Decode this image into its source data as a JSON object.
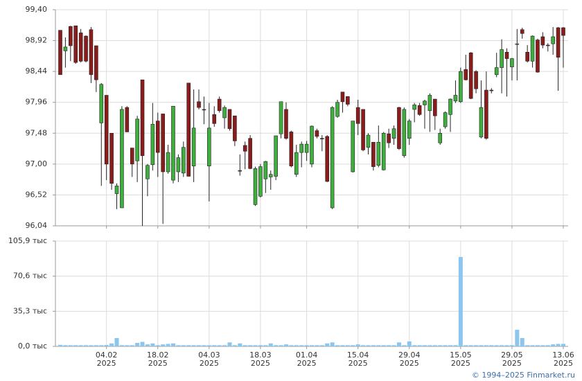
{
  "chart_data": [
    {
      "type": "candlestick",
      "categories": [
        null,
        null,
        null,
        null,
        null,
        null,
        null,
        null,
        null,
        "04.02\n2025",
        null,
        null,
        null,
        null,
        null,
        null,
        null,
        null,
        null,
        "18.02\n2025",
        null,
        null,
        null,
        null,
        null,
        null,
        null,
        null,
        null,
        "04.03\n2025",
        null,
        null,
        null,
        null,
        null,
        null,
        null,
        null,
        null,
        "18.03\n2025",
        null,
        null,
        null,
        null,
        null,
        null,
        null,
        null,
        "01.04\n2025",
        null,
        null,
        null,
        null,
        null,
        null,
        null,
        null,
        null,
        "15.04\n2025",
        null,
        null,
        null,
        null,
        null,
        null,
        null,
        null,
        null,
        "29.04\n2025",
        null,
        null,
        null,
        null,
        null,
        null,
        null,
        null,
        null,
        "15.05\n2025",
        null,
        null,
        null,
        null,
        null,
        null,
        null,
        null,
        null,
        "29.05\n2025",
        null,
        null,
        null,
        null,
        null,
        null,
        null,
        null,
        null,
        "13.06\n2025"
      ],
      "open": [
        99.08,
        98.76,
        99.14,
        99.15,
        99.04,
        98.99,
        99.09,
        98.84,
        97.64,
        98.07,
        97.48,
        96.54,
        96.32,
        97.88,
        97.25,
        97.05,
        98.31,
        96.77,
        96.99,
        97.67,
        97.78,
        96.88,
        96.75,
        96.88,
        96.86,
        98.26,
        96.97,
        97.97,
        97.85,
        96.97,
        97.77,
        98.01,
        97.72,
        97.85,
        97.75,
        96.9,
        97.29,
        97.4,
        96.37,
        96.5,
        96.77,
        96.8,
        96.81,
        97.47,
        97.85,
        97.5,
        96.84,
        97.18,
        97.18,
        97.0,
        97.52,
        97.4,
        97.43,
        96.32,
        97.74,
        98.12,
        98.05,
        96.88,
        97.88,
        97.85,
        97.26,
        97.34,
        96.98,
        96.91,
        97.47,
        97.4,
        97.88,
        97.13,
        97.4,
        97.85,
        97.91,
        97.92,
        97.83,
        98.01,
        97.33,
        97.58,
        97.77,
        97.98,
        97.97,
        98.47,
        98.73,
        98.44,
        97.42,
        98.15,
        98.15,
        98.39,
        98.5,
        98.74,
        98.51,
        98.86,
        99.09,
        98.74,
        98.6,
        98.93,
        98.98,
        98.85,
        98.87,
        99.12,
        99.12
      ],
      "high": [
        99.08,
        98.97,
        99.15,
        99.15,
        99.1,
        99.0,
        99.13,
        98.84,
        98.26,
        98.07,
        97.48,
        96.7,
        97.9,
        97.9,
        97.25,
        97.75,
        98.31,
        97.0,
        97.95,
        97.8,
        97.78,
        97.3,
        97.9,
        97.15,
        97.35,
        98.26,
        98.16,
        98.16,
        98.05,
        97.95,
        97.9,
        98.05,
        97.91,
        97.85,
        97.75,
        97.15,
        97.35,
        97.45,
        96.96,
        97.0,
        97.05,
        96.9,
        97.44,
        97.97,
        97.96,
        97.52,
        97.3,
        97.35,
        97.36,
        97.6,
        97.55,
        97.45,
        97.45,
        97.9,
        98.0,
        98.12,
        98.05,
        97.67,
        98.0,
        97.85,
        97.48,
        97.34,
        97.6,
        97.5,
        97.55,
        97.6,
        97.89,
        97.88,
        97.7,
        97.95,
        97.95,
        98.0,
        98.1,
        98.01,
        97.55,
        97.82,
        98.02,
        98.3,
        98.5,
        98.7,
        98.74,
        98.46,
        98.3,
        98.44,
        98.18,
        98.73,
        98.94,
        98.8,
        98.65,
        99.1,
        99.12,
        98.85,
        99.0,
        98.95,
        99.05,
        98.88,
        99.13,
        99.13,
        99.13
      ],
      "low": [
        98.39,
        98.5,
        98.6,
        98.56,
        98.58,
        98.58,
        98.26,
        98.12,
        96.66,
        96.75,
        96.6,
        96.3,
        96.32,
        97.5,
        96.8,
        96.72,
        96.04,
        96.5,
        96.9,
        96.8,
        96.07,
        96.85,
        96.7,
        96.72,
        96.8,
        96.81,
        96.72,
        97.85,
        97.62,
        96.42,
        97.58,
        97.8,
        97.55,
        97.52,
        97.28,
        96.82,
        96.92,
        96.92,
        96.35,
        96.48,
        96.55,
        96.6,
        96.75,
        97.4,
        97.38,
        96.95,
        96.8,
        96.95,
        97.05,
        96.95,
        97.4,
        97.2,
        96.72,
        96.3,
        97.72,
        97.8,
        97.9,
        96.87,
        97.45,
        97.2,
        97.15,
        96.9,
        96.95,
        96.9,
        97.25,
        97.3,
        97.22,
        97.1,
        97.3,
        97.65,
        97.75,
        97.55,
        97.5,
        97.53,
        97.3,
        97.55,
        97.5,
        97.95,
        97.95,
        98.3,
        98.01,
        98.1,
        97.4,
        97.38,
        98.1,
        98.35,
        98.1,
        98.05,
        98.3,
        98.3,
        98.95,
        98.58,
        98.5,
        98.42,
        98.8,
        98.75,
        98.7,
        98.14,
        98.5
      ],
      "close": [
        98.39,
        98.82,
        98.84,
        98.58,
        98.6,
        98.6,
        98.39,
        98.31,
        98.24,
        97.0,
        96.7,
        96.66,
        97.85,
        97.5,
        97.0,
        97.7,
        97.13,
        96.98,
        97.62,
        97.18,
        96.88,
        97.18,
        97.9,
        97.1,
        97.26,
        96.81,
        97.56,
        97.88,
        97.84,
        97.56,
        97.63,
        97.83,
        97.88,
        97.55,
        97.36,
        96.89,
        97.2,
        96.93,
        96.93,
        96.96,
        97.04,
        96.84,
        97.44,
        97.97,
        97.4,
        96.97,
        97.18,
        97.31,
        97.31,
        97.59,
        97.43,
        97.39,
        96.73,
        97.88,
        97.96,
        97.97,
        97.93,
        97.67,
        97.63,
        97.22,
        97.45,
        96.96,
        97.34,
        97.48,
        97.33,
        97.55,
        97.24,
        97.85,
        97.67,
        97.92,
        97.77,
        97.98,
        98.07,
        97.75,
        97.48,
        97.8,
        98.01,
        98.07,
        98.44,
        98.31,
        98.02,
        98.17,
        97.88,
        97.4,
        98.14,
        98.5,
        98.78,
        98.64,
        98.64,
        98.87,
        99.03,
        98.6,
        98.99,
        98.43,
        98.85,
        98.84,
        98.98,
        98.66,
        99.0
      ],
      "up_color": "#3fae3f",
      "down_color": "#8b1c1c",
      "ylim": [
        96.04,
        99.4
      ],
      "yticks": [
        {
          "value": 96.04,
          "label": "96,04"
        },
        {
          "value": 96.52,
          "label": "96,52"
        },
        {
          "value": 97.0,
          "label": "97,00"
        },
        {
          "value": 97.48,
          "label": "97,48"
        },
        {
          "value": 97.96,
          "label": "97,96"
        },
        {
          "value": 98.44,
          "label": "98,44"
        },
        {
          "value": 98.92,
          "label": "98,92"
        },
        {
          "value": 99.4,
          "label": "99,40"
        }
      ],
      "grid": true
    },
    {
      "type": "bar",
      "values": [
        1.5,
        1.2,
        1.2,
        1.2,
        1.2,
        1.2,
        1.2,
        1.2,
        1.2,
        1.4,
        3,
        8.4,
        1.2,
        1.2,
        1.2,
        3.5,
        4.5,
        2,
        3,
        1.2,
        2,
        2.5,
        3,
        1.2,
        1.2,
        1.2,
        1.2,
        1.2,
        1.2,
        1.2,
        1.2,
        1.2,
        1.2,
        4,
        1.2,
        3,
        1.2,
        1.2,
        1.2,
        1.2,
        1.2,
        3,
        1.2,
        1.2,
        2,
        1.2,
        1.2,
        1.2,
        1.2,
        1.2,
        1.2,
        1.2,
        3,
        4,
        1.2,
        1.2,
        1.2,
        1.2,
        2,
        1.2,
        1.2,
        1.2,
        1.2,
        1.2,
        1.2,
        1.2,
        4,
        1.2,
        5,
        1.2,
        1.2,
        1.2,
        1.2,
        1.2,
        1.2,
        1.2,
        1.2,
        1.2,
        89.9,
        1.2,
        1.2,
        1.2,
        1.2,
        1.2,
        1.2,
        1.2,
        1.2,
        1.2,
        1.2,
        16.7,
        8.4,
        1.2,
        1.2,
        1.2,
        1.2,
        1.2,
        2,
        2.5,
        2.5
      ],
      "color": "#8cc6ee",
      "ylim": [
        0,
        105.9
      ],
      "yticks": [
        {
          "value": 0,
          "label": "0,0 тыс"
        },
        {
          "value": 35.3,
          "label": "35,3 тыс"
        },
        {
          "value": 70.6,
          "label": "70,6 тыс"
        },
        {
          "value": 105.9,
          "label": "105,9 тыс"
        }
      ],
      "grid": true
    }
  ],
  "footer": "© 1994–2025 Finmarket.ru"
}
